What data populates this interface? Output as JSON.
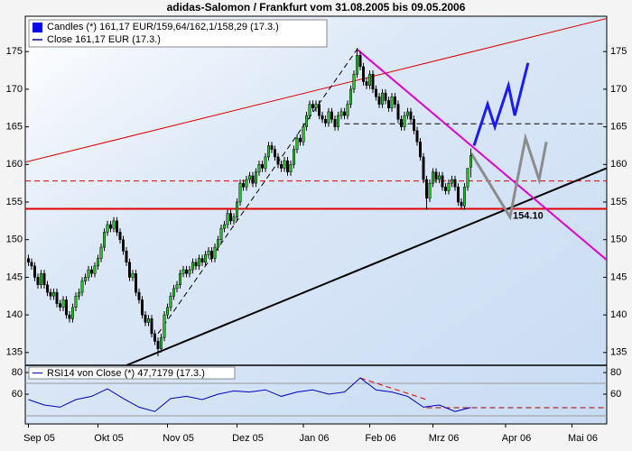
{
  "chart_data": {
    "type": "candlestick",
    "title": "adidas-Salomon / Frankfurt vom 31.08.2005 bis 09.05.2006",
    "xlim": [
      -1,
      183
    ],
    "xticks": [
      {
        "value": 0,
        "label": "Sep 05"
      },
      {
        "value": 22,
        "label": "Okt 05"
      },
      {
        "value": 44,
        "label": "Nov 05"
      },
      {
        "value": 66,
        "label": "Dez 05"
      },
      {
        "value": 87,
        "label": "Jan 06"
      },
      {
        "value": 108,
        "label": "Feb 06"
      },
      {
        "value": 128,
        "label": "Mrz 06"
      },
      {
        "value": 151,
        "label": "Apr 06"
      },
      {
        "value": 172,
        "label": "Mai 06"
      }
    ],
    "ylim": [
      133.3,
      179.7
    ],
    "yticks": [
      135,
      140,
      145,
      150,
      155,
      160,
      165,
      170,
      175
    ],
    "series": [
      {
        "name": "Candles (*) 161,17 EUR/159,64/162,1/158,29 (17.3.)",
        "color": "#0000ff",
        "up_color": "#22c422",
        "down_color": "#000000",
        "ohlc": [
          [
            147.5,
            148,
            146.5,
            147
          ],
          [
            147,
            147.5,
            146,
            146.5
          ],
          [
            146.5,
            147,
            144.5,
            145
          ],
          [
            145,
            145.5,
            143.5,
            144
          ],
          [
            144,
            146,
            143.5,
            145.5
          ],
          [
            145.5,
            146,
            143.5,
            144
          ],
          [
            144,
            144.5,
            142.5,
            143
          ],
          [
            143,
            143.5,
            142,
            142.5
          ],
          [
            142.5,
            143.5,
            142,
            143
          ],
          [
            143,
            143.5,
            141,
            141.5
          ],
          [
            141.5,
            142,
            140.5,
            141
          ],
          [
            141,
            142.5,
            140.5,
            142
          ],
          [
            142,
            142.5,
            139.5,
            140
          ],
          [
            140,
            140.5,
            139,
            139.5
          ],
          [
            139.5,
            141.5,
            139,
            141
          ],
          [
            141,
            143,
            140.5,
            142.5
          ],
          [
            142.5,
            143.5,
            142,
            143
          ],
          [
            143,
            145,
            142.5,
            144.5
          ],
          [
            144.5,
            145.5,
            144,
            145
          ],
          [
            145,
            146.5,
            144.5,
            146
          ],
          [
            146,
            146.5,
            145,
            145.5
          ],
          [
            145.5,
            147,
            145,
            146.5
          ],
          [
            146.5,
            148,
            146,
            147.5
          ],
          [
            147.5,
            149.5,
            147,
            149
          ],
          [
            149,
            151.5,
            148.5,
            151
          ],
          [
            151,
            152.5,
            150.5,
            152
          ],
          [
            152,
            152.5,
            151,
            151.5
          ],
          [
            151.5,
            153,
            151,
            152.5
          ],
          [
            152.5,
            153,
            150.5,
            151
          ],
          [
            151,
            151.5,
            149.5,
            150
          ],
          [
            150,
            150.5,
            148,
            148.5
          ],
          [
            148.5,
            149,
            146.5,
            147
          ],
          [
            147,
            147.5,
            144.5,
            145
          ],
          [
            145,
            146,
            144.5,
            145.5
          ],
          [
            145.5,
            146,
            142.5,
            143
          ],
          [
            143,
            143.5,
            141.5,
            142
          ],
          [
            142,
            142.5,
            139.5,
            140
          ],
          [
            140,
            140.5,
            138.5,
            139
          ],
          [
            139,
            140,
            138.5,
            139.5
          ],
          [
            139.5,
            140,
            137,
            137.5
          ],
          [
            137.5,
            138,
            136,
            136.5
          ],
          [
            136.5,
            137,
            134.5,
            135.5
          ],
          [
            135.5,
            137.5,
            135,
            137
          ],
          [
            137,
            140.5,
            136.5,
            140
          ],
          [
            140,
            141.5,
            139.5,
            141
          ],
          [
            141,
            143,
            140.5,
            142.5
          ],
          [
            142.5,
            144,
            142,
            143.5
          ],
          [
            143.5,
            144.5,
            143,
            144
          ],
          [
            144,
            146,
            143.5,
            145.5
          ],
          [
            145.5,
            146.5,
            145,
            146
          ],
          [
            146,
            146.5,
            145,
            145.5
          ],
          [
            145.5,
            146.5,
            145,
            146
          ],
          [
            146,
            147.5,
            145.5,
            147
          ],
          [
            147,
            147.5,
            146,
            146.5
          ],
          [
            146.5,
            148,
            146,
            147.5
          ],
          [
            147.5,
            148,
            146.5,
            147
          ],
          [
            147,
            148.5,
            146.5,
            148
          ],
          [
            148,
            149,
            147.5,
            148.5
          ],
          [
            148.5,
            149,
            147,
            147.5
          ],
          [
            147.5,
            149.5,
            147,
            149
          ],
          [
            149,
            150.5,
            148.5,
            150
          ],
          [
            150,
            152,
            149.5,
            151.5
          ],
          [
            151.5,
            152.5,
            151,
            152
          ],
          [
            152,
            154,
            151.5,
            153.5
          ],
          [
            153.5,
            154,
            152,
            152.5
          ],
          [
            152.5,
            153.5,
            152,
            153
          ],
          [
            153,
            155.5,
            152.5,
            155
          ],
          [
            155,
            158,
            154.5,
            157.5
          ],
          [
            157.5,
            158,
            156.5,
            157
          ],
          [
            157,
            158.5,
            156.5,
            158
          ],
          [
            158,
            159,
            157.5,
            158.5
          ],
          [
            158.5,
            159,
            157,
            157.5
          ],
          [
            157.5,
            159.5,
            157,
            159
          ],
          [
            159,
            160.5,
            158.5,
            160
          ],
          [
            160,
            160.5,
            159,
            159.5
          ],
          [
            159.5,
            161.5,
            159,
            161
          ],
          [
            161,
            163,
            160.5,
            162.5
          ],
          [
            162.5,
            163,
            161.5,
            162
          ],
          [
            162,
            162.5,
            160.5,
            161
          ],
          [
            161,
            161.5,
            159.5,
            160
          ],
          [
            160,
            160.5,
            159,
            159.5
          ],
          [
            159.5,
            161,
            159,
            160.5
          ],
          [
            160.5,
            161,
            158.5,
            159
          ],
          [
            159,
            160.5,
            158.5,
            160
          ],
          [
            160,
            162.5,
            159.5,
            162
          ],
          [
            162,
            164,
            161.5,
            163.5
          ],
          [
            163.5,
            164,
            162.5,
            163
          ],
          [
            163,
            165.5,
            162.5,
            165
          ],
          [
            165,
            167,
            164.5,
            166.5
          ],
          [
            166.5,
            168.5,
            166,
            168
          ],
          [
            168,
            168.5,
            167,
            167.5
          ],
          [
            167.5,
            168.5,
            167,
            168
          ],
          [
            168,
            168.5,
            166,
            166.5
          ],
          [
            166.5,
            167,
            165.5,
            166
          ],
          [
            166,
            166.5,
            165,
            165.5
          ],
          [
            165.5,
            167.5,
            165,
            167
          ],
          [
            167,
            167.5,
            165.5,
            166
          ],
          [
            166,
            166.5,
            164.5,
            165
          ],
          [
            165,
            167,
            164.5,
            166.5
          ],
          [
            166.5,
            167.5,
            166,
            167
          ],
          [
            167,
            167.5,
            166,
            166.5
          ],
          [
            166.5,
            168.5,
            166,
            168
          ],
          [
            168,
            170.5,
            167.5,
            170
          ],
          [
            170,
            172.5,
            169.5,
            172
          ],
          [
            172,
            175.5,
            171.5,
            174.5
          ],
          [
            174.5,
            175,
            172.5,
            173
          ],
          [
            173,
            173.5,
            170.5,
            171
          ],
          [
            171,
            171.5,
            170,
            170.5
          ],
          [
            170.5,
            172.5,
            170,
            172
          ],
          [
            172,
            172.5,
            169.5,
            170
          ],
          [
            170,
            170.5,
            168.5,
            169
          ],
          [
            169,
            169.5,
            167.5,
            168
          ],
          [
            168,
            170,
            167.5,
            169.5
          ],
          [
            169.5,
            170,
            168,
            168.5
          ],
          [
            168.5,
            169,
            167,
            167.5
          ],
          [
            167.5,
            169.5,
            167,
            169
          ],
          [
            169,
            169.5,
            167.5,
            168
          ],
          [
            168,
            168.5,
            165.5,
            166
          ],
          [
            166,
            166.5,
            164.5,
            165
          ],
          [
            165,
            167,
            164.5,
            166.5
          ],
          [
            166.5,
            167.5,
            166,
            167
          ],
          [
            167,
            167.5,
            165.5,
            166
          ],
          [
            166,
            166.5,
            164,
            164.5
          ],
          [
            164.5,
            165,
            162.5,
            163
          ],
          [
            163,
            163.5,
            160.5,
            161
          ],
          [
            161,
            161.5,
            157.5,
            158
          ],
          [
            158,
            158.5,
            154,
            155.5
          ],
          [
            155.5,
            158,
            155,
            157.5
          ],
          [
            157.5,
            159.5,
            157,
            159
          ],
          [
            159,
            159.5,
            157.5,
            158
          ],
          [
            158,
            159,
            157.5,
            158.5
          ],
          [
            158.5,
            159,
            156.5,
            157
          ],
          [
            157,
            157.5,
            156,
            156.5
          ],
          [
            156.5,
            158,
            156,
            157.5
          ],
          [
            157.5,
            158.5,
            157,
            158
          ],
          [
            158,
            158.5,
            156.5,
            157
          ],
          [
            157,
            157.5,
            154.5,
            155
          ],
          [
            155,
            155.5,
            154,
            154.5
          ],
          [
            154.5,
            157.5,
            154,
            157
          ],
          [
            157,
            159.5,
            156.5,
            159.5
          ],
          [
            159.64,
            162.1,
            158.29,
            161.17
          ]
        ]
      },
      {
        "name": "Close 161,17 EUR (17.3.)",
        "color": "#0000a0"
      }
    ],
    "lines": [
      {
        "color": "#e00000",
        "width": 1,
        "dash": false,
        "points": [
          [
            -1,
            160.3
          ],
          [
            183,
            179.4
          ]
        ]
      },
      {
        "color": "#e00000",
        "width": 2,
        "dash": false,
        "points": [
          [
            -1,
            154.1
          ],
          [
            183,
            154.1
          ]
        ]
      },
      {
        "color": "#e00000",
        "width": 1,
        "dash": true,
        "points": [
          [
            -1,
            157.8
          ],
          [
            183,
            157.8
          ]
        ]
      },
      {
        "color": "#000000",
        "width": 1,
        "dash": true,
        "points": [
          [
            100,
            165.4
          ],
          [
            183,
            165.4
          ]
        ]
      },
      {
        "color": "#000000",
        "width": 1,
        "dash": true,
        "points": [
          [
            41,
            137.5
          ],
          [
            104,
            175.3
          ]
        ]
      },
      {
        "color": "#000000",
        "width": 2,
        "dash": false,
        "points": [
          [
            31,
            133.3
          ],
          [
            183,
            159.5
          ]
        ]
      },
      {
        "color": "#e000d0",
        "width": 2,
        "dash": false,
        "points": [
          [
            104,
            175.3
          ],
          [
            183,
            147.3
          ]
        ]
      },
      {
        "color": "#1a1aff",
        "width": 3,
        "dash": false,
        "points": [
          [
            141,
            162.5
          ],
          [
            145.3,
            168
          ],
          [
            147.6,
            165
          ],
          [
            151.9,
            170.5
          ],
          [
            153.9,
            166.5
          ],
          [
            158.1,
            173.5
          ]
        ]
      },
      {
        "color": "#8c8c8c",
        "width": 3,
        "dash": false,
        "points": [
          [
            140.1,
            161.5
          ],
          [
            152.4,
            153
          ],
          [
            157.3,
            163.5
          ],
          [
            161.6,
            158
          ],
          [
            163.9,
            163
          ]
        ]
      }
    ],
    "annotation": {
      "value": 154.1,
      "label": "154.10",
      "x": 153.3,
      "color": "#e00000"
    },
    "rsi": {
      "name": "RSI14 von Close (*) 47,7179 (17.3.)",
      "color": "#0000c0",
      "ylim": [
        32.5,
        86.7
      ],
      "yticks": [
        60,
        80
      ],
      "x": [
        0,
        5,
        10,
        15,
        20,
        25,
        30,
        35,
        40,
        45,
        50,
        55,
        60,
        65,
        70,
        75,
        80,
        85,
        90,
        95,
        100,
        105,
        110,
        115,
        120,
        125,
        130,
        135,
        140
      ],
      "values": [
        55,
        50,
        48,
        55,
        58,
        65,
        56,
        48,
        44,
        56,
        58,
        55,
        60,
        63,
        62,
        64,
        58,
        62,
        64,
        60,
        62,
        75,
        64,
        62,
        58,
        48,
        50,
        44,
        47.7179
      ],
      "levels": [
        70,
        40
      ],
      "lines": [
        {
          "color": "#e00000",
          "width": 1,
          "dash": true,
          "points": [
            [
              105,
              75
            ],
            [
              126,
              55
            ]
          ]
        },
        {
          "color": "#a00000",
          "width": 1,
          "dash": true,
          "points": [
            [
              126,
              47.5
            ],
            [
              183,
              47.5
            ]
          ]
        }
      ]
    }
  }
}
